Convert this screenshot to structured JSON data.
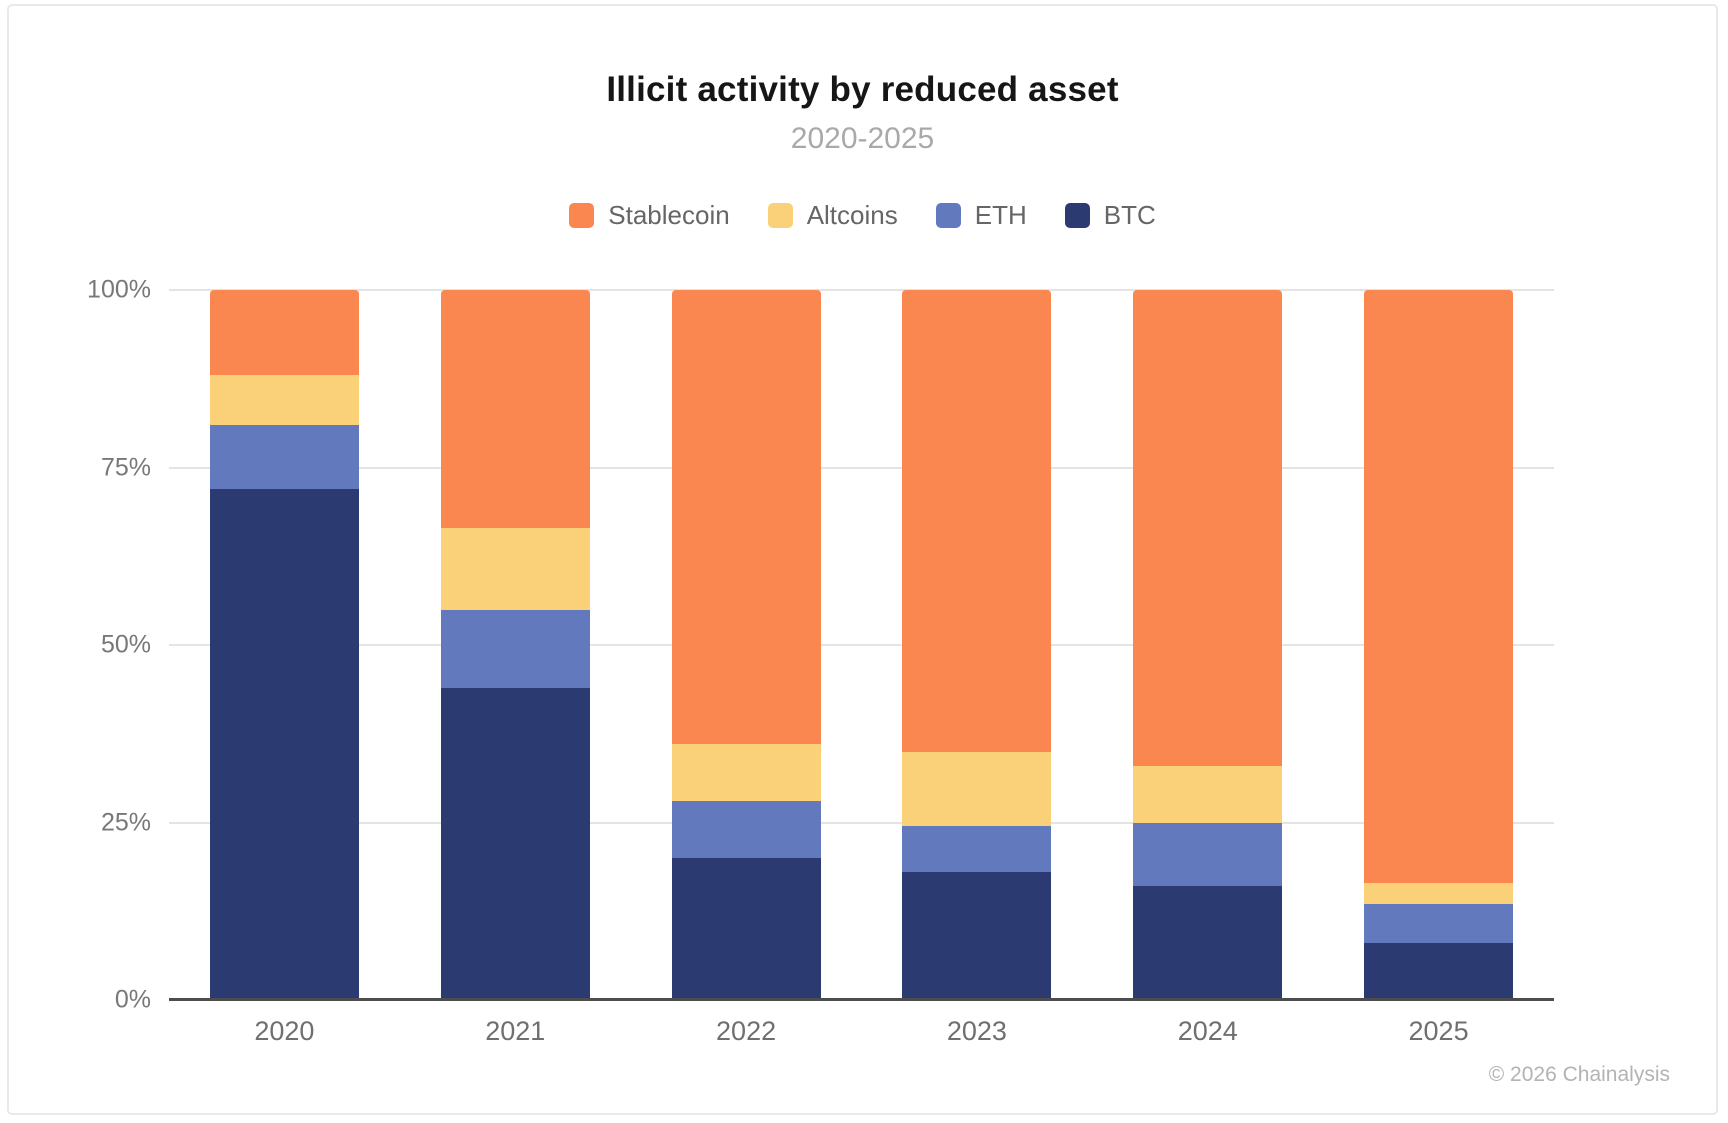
{
  "header": {
    "title": "Illicit activity by reduced asset",
    "subtitle": "2020-2025"
  },
  "footer": {
    "copyright": "© 2026 Chainalysis"
  },
  "chart_data": {
    "type": "bar",
    "variant": "stacked-100-percent",
    "title": "Illicit activity by reduced asset",
    "subtitle": "2020-2025",
    "categories": [
      "2020",
      "2021",
      "2022",
      "2023",
      "2024",
      "2025"
    ],
    "series": [
      {
        "name": "Stablecoin",
        "color": "#FA8650",
        "values": [
          12,
          33.5,
          64,
          65,
          67,
          83.5
        ]
      },
      {
        "name": "Altcoins",
        "color": "#FAD178",
        "values": [
          7,
          11.5,
          8,
          10.5,
          8,
          3
        ]
      },
      {
        "name": "ETH",
        "color": "#6379BE",
        "values": [
          9,
          11,
          8,
          6.5,
          9,
          5.5
        ]
      },
      {
        "name": "BTC",
        "color": "#2B3B72",
        "values": [
          72,
          44,
          20,
          18,
          16,
          8
        ]
      }
    ],
    "stack_order_bottom_to_top": [
      "BTC",
      "ETH",
      "Altcoins",
      "Stablecoin"
    ],
    "ylim": [
      0,
      100
    ],
    "yticks": [
      "0%",
      "25%",
      "50%",
      "75%",
      "100%"
    ],
    "ytick_values": [
      0,
      25,
      50,
      75,
      100
    ],
    "grid": true,
    "legend_position": "top",
    "axis_colors": {
      "gridline": "#e4e4e4",
      "baseline": "#4d4d4d",
      "tick_label": "#787878"
    }
  }
}
